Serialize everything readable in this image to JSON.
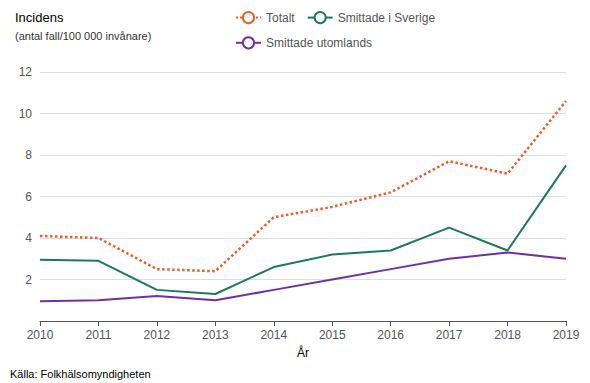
{
  "chart_data": {
    "type": "line",
    "title": "Incidens",
    "subtitle": "(antal fall/100 000 invånare)",
    "xlabel": "År",
    "annotations": [
      "Källa: Folkhälsomyndigheten"
    ],
    "x": [
      2010,
      2011,
      2012,
      2013,
      2014,
      2015,
      2016,
      2017,
      2018,
      2019
    ],
    "xlim": [
      2010,
      2019
    ],
    "xticks": [
      2010,
      2011,
      2012,
      2013,
      2014,
      2015,
      2016,
      2017,
      2018,
      2019
    ],
    "ylim": [
      0,
      12
    ],
    "yticks": [
      {
        "value": 0,
        "label": ""
      },
      2,
      4,
      6,
      8,
      10,
      12
    ],
    "grid": true,
    "legend": "top",
    "series": [
      {
        "name": "Totalt",
        "color": "#f05a28",
        "line_style": "dotted",
        "values": [
          4.1,
          4.0,
          2.5,
          2.4,
          5.0,
          5.5,
          6.2,
          7.7,
          7.1,
          10.6
        ]
      },
      {
        "name": "Smittade i Sverige",
        "color": "#1a7a5e",
        "line_style": "solid",
        "values": [
          2.95,
          2.9,
          1.5,
          1.3,
          2.6,
          3.2,
          3.4,
          4.5,
          3.4,
          7.5
        ]
      },
      {
        "name": "Smittade utomlands",
        "color": "#7030a0",
        "line_style": "solid",
        "values": [
          0.95,
          1.0,
          1.2,
          1.0,
          1.5,
          2.0,
          2.5,
          3.0,
          3.3,
          3.0
        ]
      }
    ]
  }
}
